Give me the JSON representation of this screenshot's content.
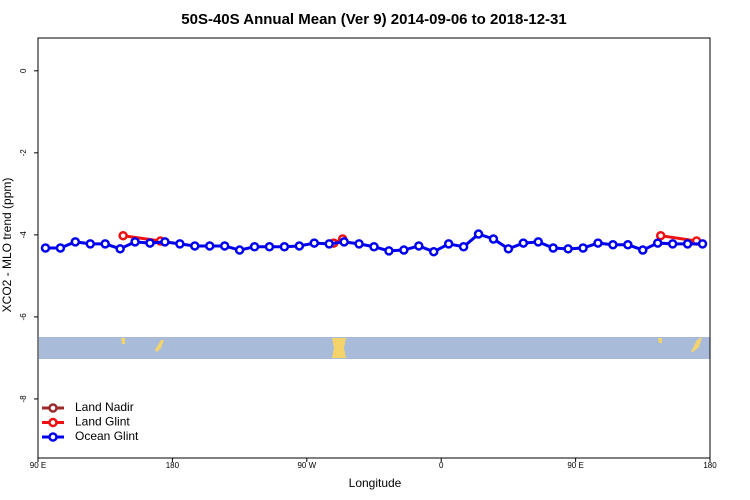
{
  "chart_data": {
    "type": "line",
    "title": "50S-40S Annual Mean (Ver 9)   2014-09-06 to 2018-12-31",
    "x_label": "Longitude",
    "y_label": "XCO2 - MLO trend (ppm)",
    "xlim": [
      90,
      540
    ],
    "ylim": [
      -9.44,
      0.8
    ],
    "xticks": [
      {
        "value": 90,
        "label": "90 E"
      },
      {
        "value": 180,
        "label": "180"
      },
      {
        "value": 270,
        "label": "90 W"
      },
      {
        "value": 360,
        "label": "0"
      },
      {
        "value": 450,
        "label": "90 E"
      },
      {
        "value": 540,
        "label": "180"
      }
    ],
    "yticks": [
      0,
      -2,
      -4,
      -6,
      -8
    ],
    "legend": "bottom-left",
    "series": [
      {
        "name": "Land Nadir",
        "color": "#9b2a2a",
        "x": [],
        "values": []
      },
      {
        "name": "Land Glint",
        "color": "#ee1111",
        "x": [
          147,
          172,
          null,
          288,
          294,
          null,
          507,
          531
        ],
        "values": [
          -4.02,
          -4.15,
          null,
          -4.2,
          -4.1,
          null,
          -4.02,
          -4.15
        ]
      },
      {
        "name": "Ocean Glint",
        "color": "#0000ee",
        "x": [
          95,
          105,
          115,
          125,
          135,
          145,
          155,
          165,
          175,
          185,
          195,
          205,
          215,
          225,
          235,
          245,
          255,
          265,
          275,
          285,
          295,
          305,
          315,
          325,
          335,
          345,
          355,
          365,
          375,
          385,
          395,
          405,
          415,
          425,
          435,
          445,
          455,
          465,
          475,
          485,
          495,
          505,
          515,
          525,
          535
        ],
        "values": [
          -4.32,
          -4.32,
          -4.17,
          -4.22,
          -4.22,
          -4.34,
          -4.17,
          -4.2,
          -4.17,
          -4.22,
          -4.27,
          -4.27,
          -4.27,
          -4.37,
          -4.29,
          -4.29,
          -4.29,
          -4.27,
          -4.2,
          -4.22,
          -4.17,
          -4.22,
          -4.29,
          -4.39,
          -4.37,
          -4.27,
          -4.41,
          -4.22,
          -4.29,
          -3.98,
          -4.1,
          -4.34,
          -4.2,
          -4.17,
          -4.32,
          -4.34,
          -4.32,
          -4.2,
          -4.24,
          -4.24,
          -4.37,
          -4.2,
          -4.22,
          -4.22,
          -4.22
        ]
      }
    ]
  }
}
